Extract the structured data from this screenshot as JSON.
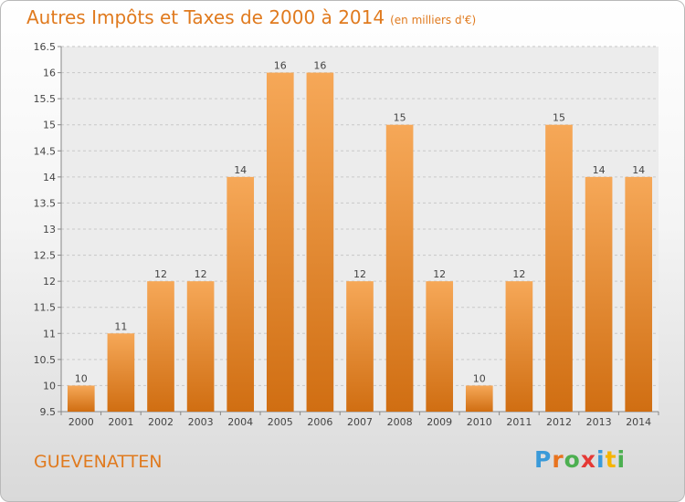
{
  "header": {
    "title": "Autres Impôts et Taxes de 2000 à 2014",
    "unit": "(en milliers d'€)"
  },
  "footer": {
    "city": "GUEVENATTEN",
    "logo": {
      "text": "Proxiti",
      "letter_colors": [
        "#3a9ad9",
        "#e8731e",
        "#4caf50",
        "#e53935",
        "#3a9ad9",
        "#f5b400",
        "#4caf50"
      ]
    }
  },
  "colors": {
    "accent": "#e07a1e",
    "bar_top": "#f6a858",
    "bar_bottom": "#d06e12",
    "grid": "#c8c8c8",
    "text": "#444444"
  },
  "chart_data": {
    "type": "bar",
    "title": "Autres Impôts et Taxes de 2000 à 2014",
    "subtitle": "(en milliers d'€)",
    "xlabel": "",
    "ylabel": "",
    "categories": [
      "2000",
      "2001",
      "2002",
      "2003",
      "2004",
      "2005",
      "2006",
      "2007",
      "2008",
      "2009",
      "2010",
      "2011",
      "2012",
      "2013",
      "2014"
    ],
    "values": [
      10,
      11,
      12,
      12,
      14,
      16,
      16,
      12,
      15,
      12,
      10,
      12,
      15,
      14,
      14
    ],
    "data_labels": [
      "10",
      "11",
      "12",
      "12",
      "14",
      "16",
      "16",
      "12",
      "15",
      "12",
      "10",
      "12",
      "15",
      "14",
      "14"
    ],
    "ylim": [
      9.5,
      16.5
    ],
    "yticks": [
      9.5,
      10,
      10.5,
      11,
      11.5,
      12,
      12.5,
      13,
      13.5,
      14,
      14.5,
      15,
      15.5,
      16,
      16.5
    ],
    "ytick_labels": [
      "9.5",
      "10",
      "10.5",
      "11",
      "11.5",
      "12",
      "12.5",
      "13",
      "13.5",
      "14",
      "14.5",
      "15",
      "15.5",
      "16",
      "16.5"
    ],
    "grid": "horizontal dashed"
  }
}
